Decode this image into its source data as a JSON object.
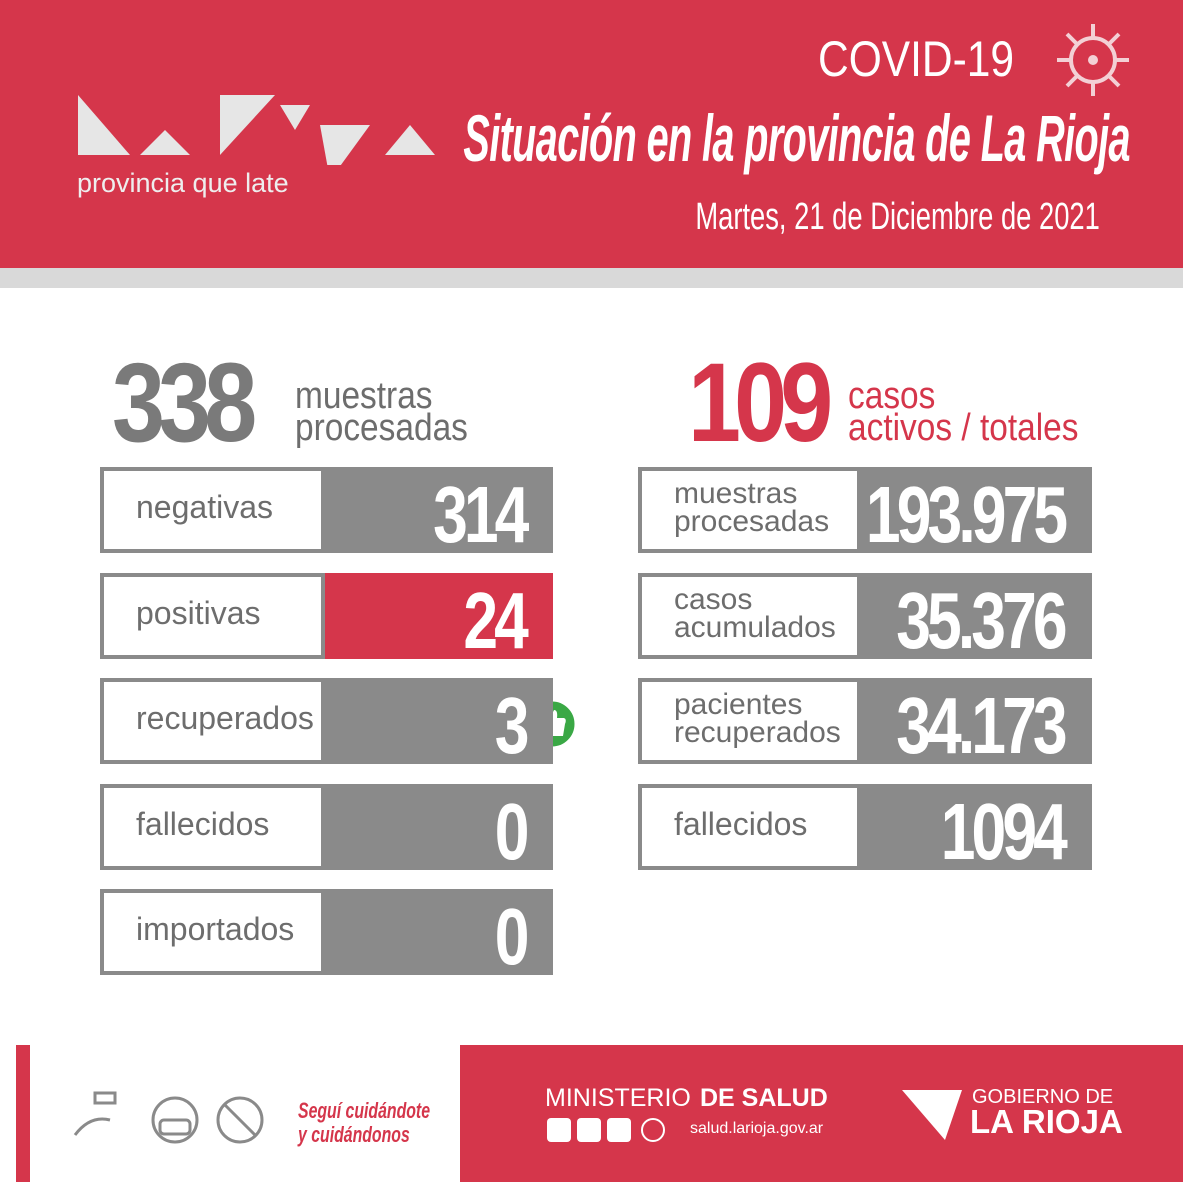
{
  "header": {
    "brand": "provincia que late",
    "tag": "COVID-19",
    "title": "Situación en la provincia de La Rioja",
    "date": "Martes, 21 de Diciembre de 2021"
  },
  "daily": {
    "total": "338",
    "total_label": [
      "muestras",
      "procesadas"
    ],
    "rows": [
      {
        "label": "negativas",
        "value": "314"
      },
      {
        "label": "positivas",
        "value": "24"
      },
      {
        "label": "recuperados",
        "value": "3"
      },
      {
        "label": "fallecidos",
        "value": "0"
      },
      {
        "label": "importados",
        "value": "0"
      }
    ]
  },
  "cumulative": {
    "total": "109",
    "total_label": [
      "casos",
      "activos / totales"
    ],
    "rows": [
      {
        "label": [
          "muestras",
          "procesadas"
        ],
        "value": "193.975"
      },
      {
        "label": [
          "casos",
          "acumulados"
        ],
        "value": "35.376"
      },
      {
        "label": [
          "pacientes",
          "recuperados"
        ],
        "value": "34.173"
      },
      {
        "label": [
          "fallecidos"
        ],
        "value": "1094"
      }
    ]
  },
  "footer": {
    "slogan": [
      "Seguí cuidándote",
      "y cuidándonos"
    ],
    "ministry": [
      "MINISTERIO",
      "DE SALUD"
    ],
    "url": "salud.larioja.gov.ar",
    "government": [
      "GOBIERNO DE",
      "LA RIOJA"
    ]
  }
}
